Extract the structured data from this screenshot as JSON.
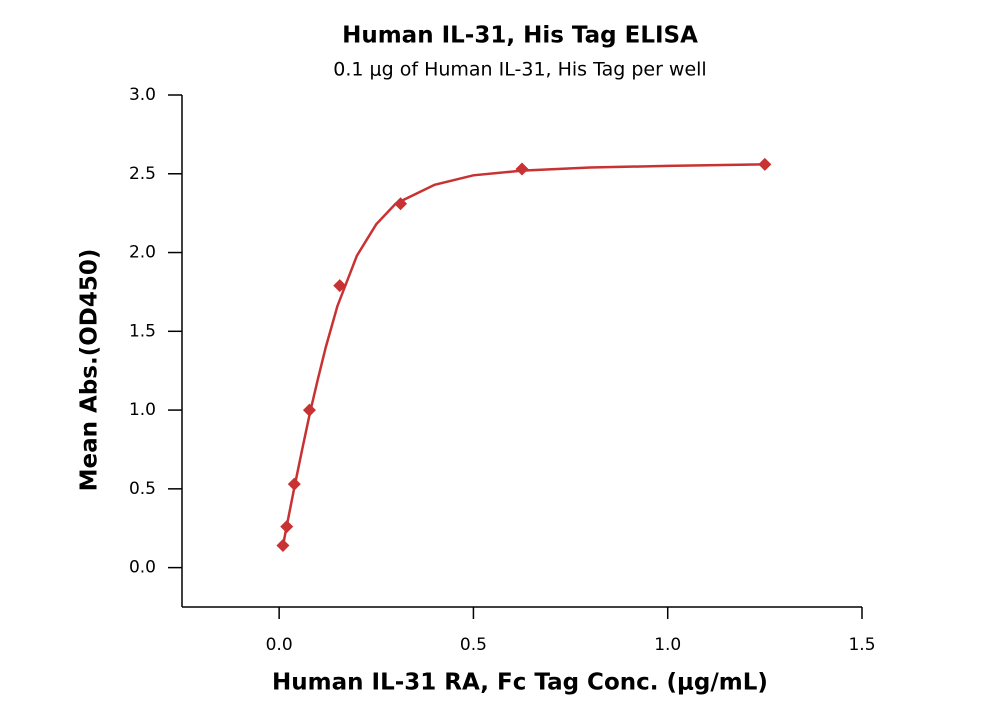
{
  "chart_data": {
    "type": "scatter",
    "title": "Human IL-31, His Tag ELISA",
    "subtitle": "0.1 μg of Human IL-31, His Tag per well",
    "x_label": "Human IL-31 RA, Fc Tag Conc. (μg/mL)",
    "y_label": "Mean Abs.(OD450)",
    "x": [
      0.0098,
      0.0195,
      0.039,
      0.078,
      0.156,
      0.3125,
      0.625,
      1.25
    ],
    "values": [
      0.14,
      0.26,
      0.53,
      1.0,
      1.79,
      2.31,
      2.53,
      2.56
    ],
    "color": "#c83232",
    "fit": {
      "x": [
        0.01,
        0.02,
        0.04,
        0.06,
        0.08,
        0.1,
        0.12,
        0.15,
        0.2,
        0.25,
        0.3,
        0.4,
        0.5,
        0.625,
        0.8,
        1.0,
        1.25
      ],
      "values": [
        0.14,
        0.27,
        0.52,
        0.76,
        0.99,
        1.2,
        1.4,
        1.66,
        1.98,
        2.18,
        2.31,
        2.43,
        2.49,
        2.52,
        2.54,
        2.55,
        2.56
      ],
      "color": "#c83232"
    },
    "xlim": [
      -0.25,
      1.5
    ],
    "xticks": [
      {
        "value": 0,
        "label": "0.0"
      },
      0.5,
      {
        "value": 1,
        "label": "1.0"
      },
      1.5
    ],
    "ylim": [
      -0.25,
      3.0
    ],
    "yticks": [
      {
        "value": 0,
        "label": "0.0"
      },
      0.5,
      {
        "value": 1,
        "label": "1.0"
      },
      1.5,
      {
        "value": 2,
        "label": "2.0"
      },
      2.5,
      {
        "value": 3,
        "label": "3.0"
      }
    ]
  }
}
